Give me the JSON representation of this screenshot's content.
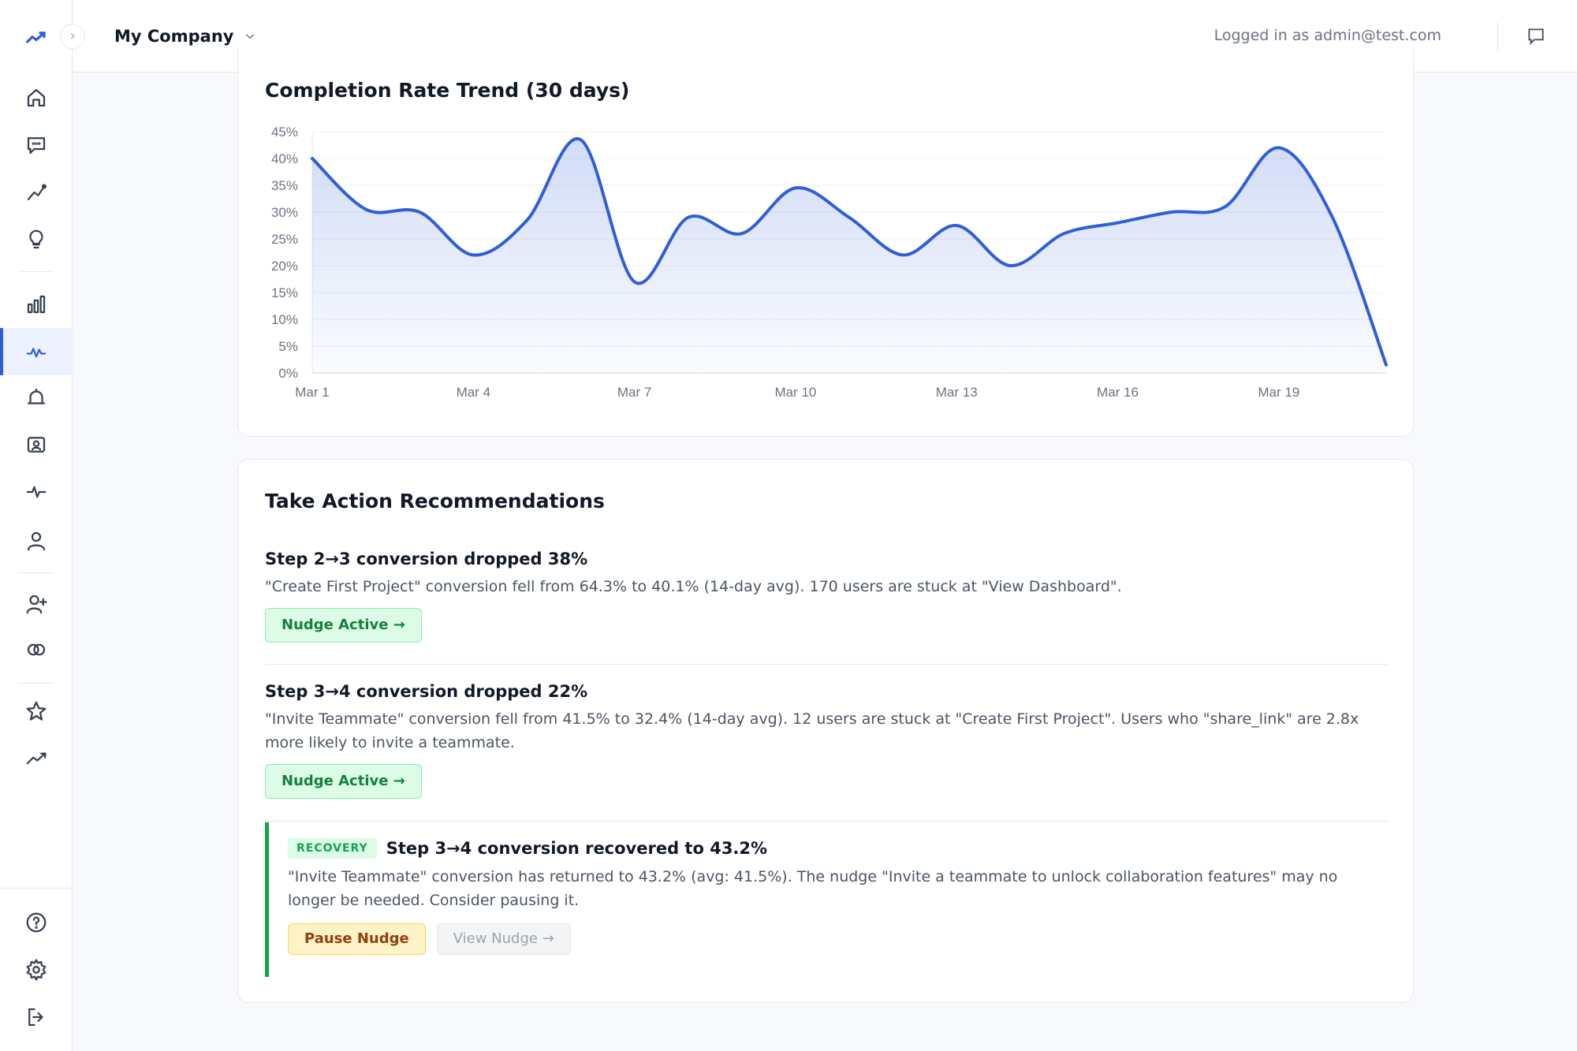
{
  "header": {
    "company": "My Company",
    "logged_in": "Logged in as admin@test.com"
  },
  "sidebar": {
    "items": [
      {
        "name": "home-icon"
      },
      {
        "name": "chat-icon"
      },
      {
        "name": "trend-icon"
      },
      {
        "name": "lightbulb-icon"
      },
      {
        "name": "bar-chart-icon"
      },
      {
        "name": "pulse-icon",
        "active": true
      },
      {
        "name": "bell-icon"
      },
      {
        "name": "contact-card-icon"
      },
      {
        "name": "activity-icon"
      },
      {
        "name": "user-icon"
      },
      {
        "name": "add-user-icon"
      },
      {
        "name": "segments-icon"
      },
      {
        "name": "star-icon"
      },
      {
        "name": "growth-icon"
      },
      {
        "name": "help-icon"
      },
      {
        "name": "settings-icon"
      },
      {
        "name": "logout-icon"
      }
    ]
  },
  "chart_data": {
    "type": "area",
    "title": "Completion Rate Trend (30 days)",
    "x": [
      "Mar 1",
      "Mar 2",
      "Mar 3",
      "Mar 4",
      "Mar 5",
      "Mar 6",
      "Mar 7",
      "Mar 8",
      "Mar 9",
      "Mar 10",
      "Mar 11",
      "Mar 12",
      "Mar 13",
      "Mar 14",
      "Mar 15",
      "Mar 16",
      "Mar 17",
      "Mar 18",
      "Mar 19",
      "Mar 20",
      "Mar 21"
    ],
    "x_tick_labels": [
      "Mar 1",
      "Mar 4",
      "Mar 7",
      "Mar 10",
      "Mar 13",
      "Mar 16",
      "Mar 19"
    ],
    "series": [
      {
        "values": [
          40,
          30.5,
          30,
          22,
          28.5,
          43.5,
          17,
          29,
          26,
          34.5,
          29,
          22,
          27.5,
          20,
          26,
          28,
          30,
          31,
          42,
          29,
          1.5
        ]
      }
    ],
    "y_tick_labels": [
      "0%",
      "5%",
      "10%",
      "15%",
      "20%",
      "25%",
      "30%",
      "35%",
      "40%",
      "45%"
    ],
    "ylim": [
      0,
      45
    ],
    "grid": true,
    "color": "#2f5fd8"
  },
  "recommendations": {
    "title": "Take Action Recommendations",
    "items": [
      {
        "title": "Step 2→3 conversion dropped 38%",
        "desc": "\"Create First Project\" conversion fell from 64.3% to 40.1% (14-day avg). 170 users are stuck at \"View Dashboard\".",
        "button": "Nudge Active →"
      },
      {
        "title": "Step 3→4 conversion dropped 22%",
        "desc": "\"Invite Teammate\" conversion fell from 41.5% to 32.4% (14-day avg). 12 users are stuck at \"Create First Project\". Users who \"share_link\" are 2.8x more likely to invite a teammate.",
        "button": "Nudge Active →"
      }
    ],
    "recovery": {
      "badge": "RECOVERY",
      "title": "Step 3→4 conversion recovered to 43.2%",
      "desc": "\"Invite Teammate\" conversion has returned to 43.2% (avg: 41.5%). The nudge \"Invite a teammate to unlock collaboration features\" may no longer be needed. Consider pausing it.",
      "pause_button": "Pause Nudge",
      "view_button": "View Nudge →"
    }
  }
}
